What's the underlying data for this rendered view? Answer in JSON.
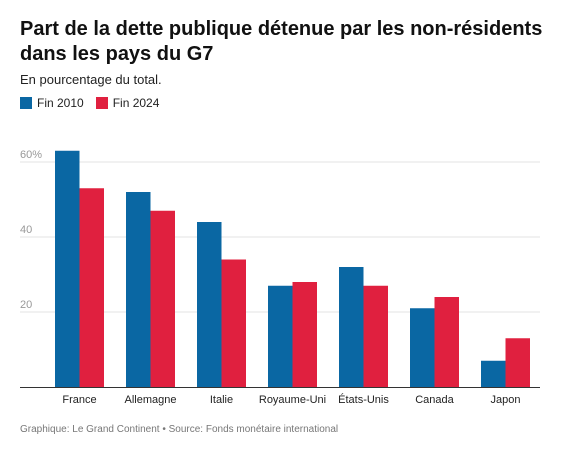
{
  "title": "Part de la dette publique détenue par les non-résidents dans les pays du G7",
  "subtitle": "En pourcentage du total.",
  "footer": "Graphique: Le Grand Continent • Source: Fonds monétaire international",
  "chart_data": {
    "type": "bar",
    "categories": [
      "France",
      "Allemagne",
      "Italie",
      "Royaume-Uni",
      "États-Unis",
      "Canada",
      "Japon"
    ],
    "series": [
      {
        "name": "Fin 2010",
        "color": "#0a67a3",
        "values": [
          63,
          52,
          44,
          27,
          32,
          21,
          7
        ]
      },
      {
        "name": "Fin 2024",
        "color": "#e0203f",
        "values": [
          53,
          47,
          34,
          28,
          27,
          24,
          13
        ]
      }
    ],
    "yticks": [
      0,
      20,
      40,
      60
    ],
    "ytick_labels": [
      "",
      "20",
      "40",
      "60%"
    ],
    "ylim": [
      0,
      62
    ],
    "legend_position": "top-left",
    "grid": true
  }
}
